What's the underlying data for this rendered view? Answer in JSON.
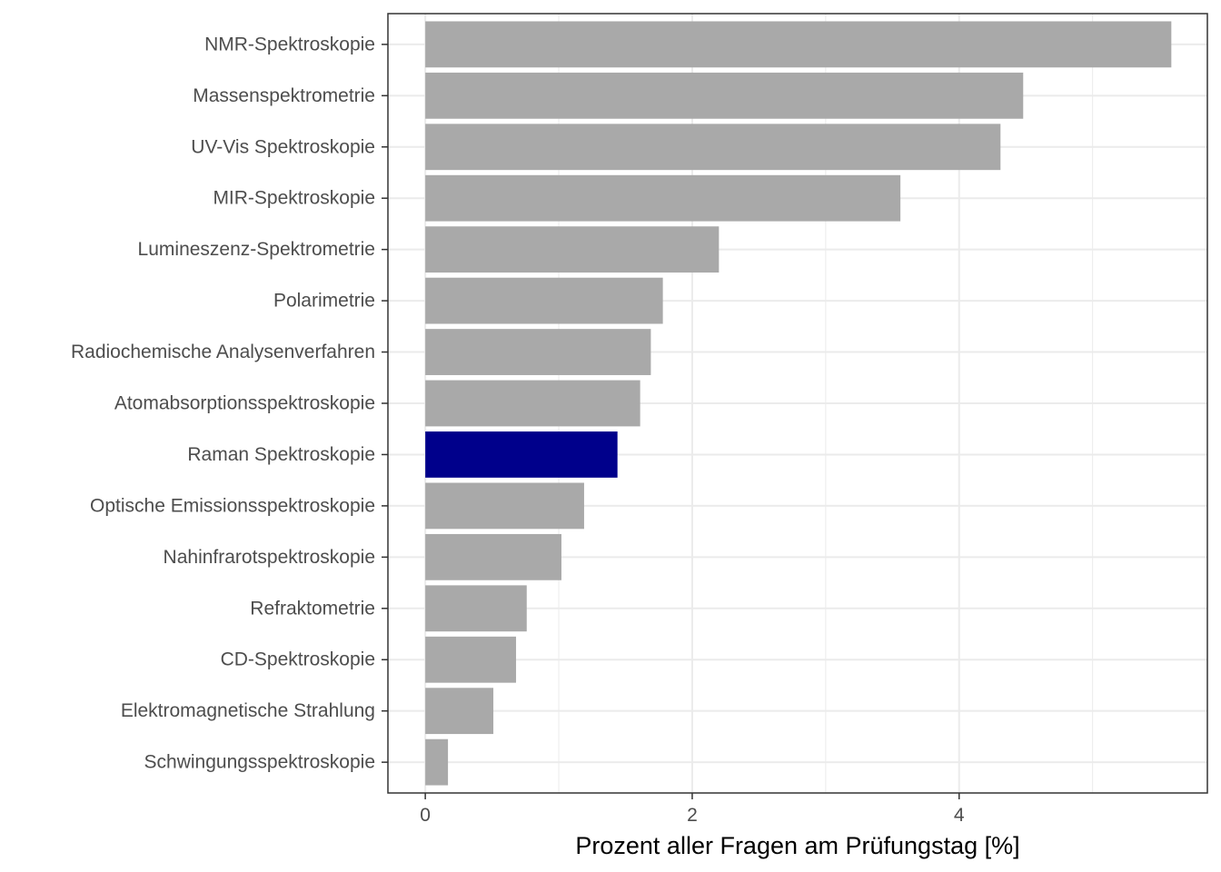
{
  "chart_data": {
    "type": "bar",
    "orientation": "horizontal",
    "title": "",
    "xlabel": "Prozent aller Fragen am Prüfungstag [%]",
    "ylabel": "",
    "xlim": [
      -0.28,
      5.86
    ],
    "x_ticks": [
      0,
      2,
      4
    ],
    "x_tick_labels": [
      "0",
      "2",
      "4"
    ],
    "x_minor_gridlines": [
      1,
      3,
      5
    ],
    "grid": true,
    "legend": "none",
    "categories": [
      "NMR-Spektroskopie",
      "Massenspektrometrie",
      "UV-Vis Spektroskopie",
      "MIR-Spektroskopie",
      "Lumineszenz-Spektrometrie",
      "Polarimetrie",
      "Radiochemische Analysenverfahren",
      "Atomabsorptionsspektroskopie",
      "Raman Spektroskopie",
      "Optische Emissionsspektroskopie",
      "Nahinfrarotspektroskopie",
      "Refraktometrie",
      "CD-Spektroskopie",
      "Elektromagnetische Strahlung",
      "Schwingungsspektroskopie"
    ],
    "values": [
      5.59,
      4.48,
      4.31,
      3.56,
      2.2,
      1.78,
      1.69,
      1.61,
      1.44,
      1.19,
      1.02,
      0.76,
      0.68,
      0.51,
      0.17
    ],
    "highlight_category": "Raman Spektroskopie",
    "colors": {
      "bar": "#a9a9a9",
      "highlight": "#00008b",
      "grid": "#ebebeb",
      "panel_border": "#333333",
      "tick_text": "#4d4d4d",
      "title_text": "#000000"
    }
  }
}
